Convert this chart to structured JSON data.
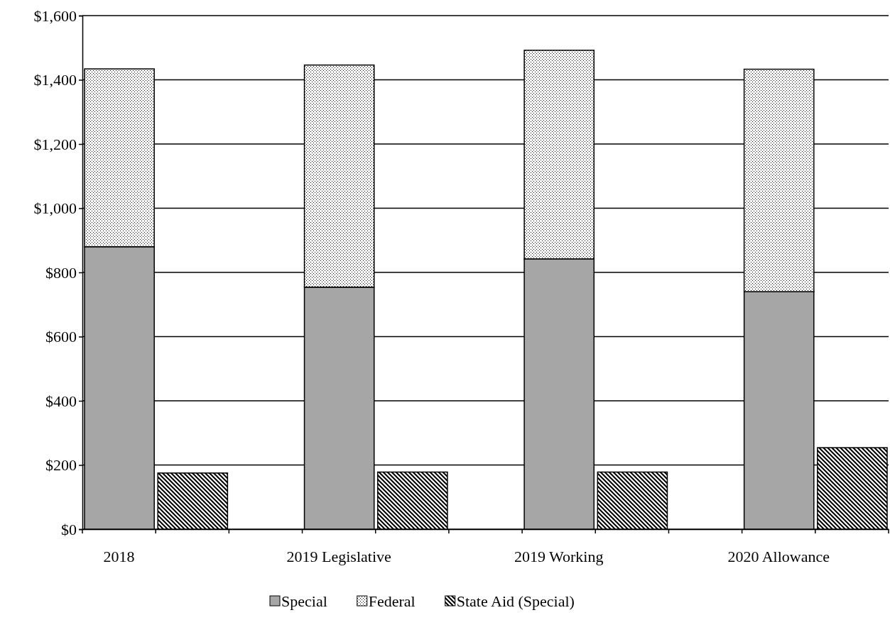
{
  "chart_data": {
    "type": "bar",
    "categories": [
      "2018",
      null,
      null,
      "2019 Legislative",
      null,
      null,
      "2019 Working",
      null,
      null,
      "2020 Allowance",
      null
    ],
    "stacked": true,
    "series": [
      {
        "name": "Special",
        "color": "#a6a6a6",
        "values": [
          880,
          null,
          null,
          754,
          null,
          null,
          842,
          null,
          null,
          740,
          null
        ]
      },
      {
        "name": "Federal",
        "color": "#000000",
        "values": [
          554,
          null,
          null,
          692,
          null,
          null,
          650,
          null,
          null,
          693,
          null
        ]
      },
      {
        "name": "State Aid (Special)",
        "color": "#000000",
        "values": [
          null,
          175,
          null,
          null,
          178,
          null,
          null,
          178,
          null,
          null,
          254
        ]
      }
    ],
    "ylim": [
      0,
      1600
    ],
    "yticks": [
      {
        "value": 0,
        "label": "$0"
      },
      {
        "value": 200,
        "label": "$200"
      },
      {
        "value": 400,
        "label": "$400"
      },
      {
        "value": 600,
        "label": "$600"
      },
      {
        "value": 800,
        "label": "$800"
      },
      {
        "value": 1000,
        "label": "$1,000"
      },
      {
        "value": 1200,
        "label": "$1,200"
      },
      {
        "value": 1400,
        "label": "$1,400"
      },
      {
        "value": 1600,
        "label": "$1,600"
      }
    ],
    "grid": "y",
    "legend": "bottom"
  }
}
